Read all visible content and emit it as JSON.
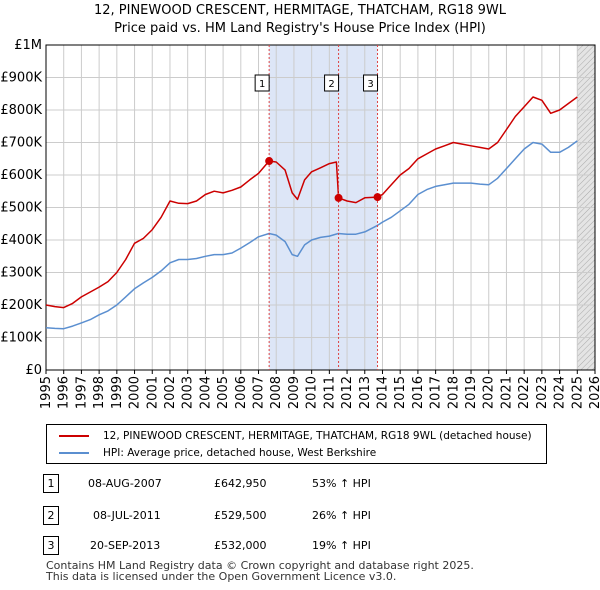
{
  "chart_data": {
    "type": "line",
    "title": "12, PINEWOOD CRESCENT, HERMITAGE, THATCHAM, RG18 9WL",
    "subtitle": "Price paid vs. HM Land Registry's House Price Index (HPI)",
    "xlim": [
      1995,
      2026
    ],
    "ylim": [
      0,
      1000000
    ],
    "x_ticks": [
      "1995",
      "1996",
      "1997",
      "1998",
      "1999",
      "2000",
      "2001",
      "2002",
      "2003",
      "2004",
      "2005",
      "2006",
      "2007",
      "2008",
      "2009",
      "2010",
      "2011",
      "2012",
      "2013",
      "2014",
      "2015",
      "2016",
      "2017",
      "2018",
      "2019",
      "2020",
      "2021",
      "2022",
      "2023",
      "2024",
      "2025",
      "2026"
    ],
    "y_ticks": [
      {
        "value": 0,
        "label": "£0"
      },
      {
        "value": 100000,
        "label": "£100K"
      },
      {
        "value": 200000,
        "label": "£200K"
      },
      {
        "value": 300000,
        "label": "£300K"
      },
      {
        "value": 400000,
        "label": "£400K"
      },
      {
        "value": 500000,
        "label": "£500K"
      },
      {
        "value": 600000,
        "label": "£600K"
      },
      {
        "value": 700000,
        "label": "£700K"
      },
      {
        "value": 800000,
        "label": "£800K"
      },
      {
        "value": 900000,
        "label": "£900K"
      },
      {
        "value": 1000000,
        "label": "£1M"
      }
    ],
    "shaded_ranges": [
      {
        "from": 2007.6,
        "to": 2013.72,
        "color": "#dde6f7"
      },
      {
        "from": 2025.0,
        "to": 2026.0,
        "color": "#e4e4e4",
        "hatched": true
      }
    ],
    "series": [
      {
        "name": "12, PINEWOOD CRESCENT, HERMITAGE, THATCHAM, RG18 9WL (detached house)",
        "color": "#cc0000",
        "points": [
          [
            1995.0,
            200000
          ],
          [
            1995.5,
            195000
          ],
          [
            1996.0,
            192000
          ],
          [
            1996.5,
            205000
          ],
          [
            1997.0,
            225000
          ],
          [
            1997.5,
            240000
          ],
          [
            1998.0,
            255000
          ],
          [
            1998.5,
            272000
          ],
          [
            1999.0,
            300000
          ],
          [
            1999.5,
            340000
          ],
          [
            2000.0,
            390000
          ],
          [
            2000.5,
            405000
          ],
          [
            2001.0,
            432000
          ],
          [
            2001.5,
            470000
          ],
          [
            2002.0,
            520000
          ],
          [
            2002.5,
            513000
          ],
          [
            2003.0,
            512000
          ],
          [
            2003.5,
            520000
          ],
          [
            2004.0,
            540000
          ],
          [
            2004.5,
            550000
          ],
          [
            2005.0,
            545000
          ],
          [
            2005.5,
            553000
          ],
          [
            2006.0,
            563000
          ],
          [
            2006.5,
            585000
          ],
          [
            2007.0,
            605000
          ],
          [
            2007.6,
            642950
          ],
          [
            2008.0,
            640000
          ],
          [
            2008.5,
            615000
          ],
          [
            2008.9,
            545000
          ],
          [
            2009.2,
            525000
          ],
          [
            2009.6,
            585000
          ],
          [
            2010.0,
            610000
          ],
          [
            2010.5,
            622000
          ],
          [
            2011.0,
            635000
          ],
          [
            2011.4,
            640000
          ],
          [
            2011.52,
            529500
          ],
          [
            2012.0,
            520000
          ],
          [
            2012.5,
            515000
          ],
          [
            2013.0,
            530000
          ],
          [
            2013.72,
            532000
          ],
          [
            2014.0,
            540000
          ],
          [
            2014.5,
            570000
          ],
          [
            2015.0,
            600000
          ],
          [
            2015.5,
            620000
          ],
          [
            2016.0,
            650000
          ],
          [
            2016.5,
            665000
          ],
          [
            2017.0,
            680000
          ],
          [
            2017.5,
            690000
          ],
          [
            2018.0,
            700000
          ],
          [
            2018.5,
            695000
          ],
          [
            2019.0,
            690000
          ],
          [
            2019.5,
            685000
          ],
          [
            2020.0,
            680000
          ],
          [
            2020.5,
            700000
          ],
          [
            2021.0,
            740000
          ],
          [
            2021.5,
            780000
          ],
          [
            2022.0,
            810000
          ],
          [
            2022.5,
            840000
          ],
          [
            2023.0,
            830000
          ],
          [
            2023.5,
            790000
          ],
          [
            2024.0,
            800000
          ],
          [
            2024.5,
            820000
          ],
          [
            2025.0,
            840000
          ]
        ]
      },
      {
        "name": "HPI: Average price, detached house, West Berkshire",
        "color": "#5b8fd0",
        "points": [
          [
            1995.0,
            130000
          ],
          [
            1995.5,
            128000
          ],
          [
            1996.0,
            127000
          ],
          [
            1996.5,
            135000
          ],
          [
            1997.0,
            145000
          ],
          [
            1997.5,
            155000
          ],
          [
            1998.0,
            170000
          ],
          [
            1998.5,
            182000
          ],
          [
            1999.0,
            200000
          ],
          [
            1999.5,
            225000
          ],
          [
            2000.0,
            250000
          ],
          [
            2000.5,
            268000
          ],
          [
            2001.0,
            285000
          ],
          [
            2001.5,
            305000
          ],
          [
            2002.0,
            330000
          ],
          [
            2002.5,
            340000
          ],
          [
            2003.0,
            340000
          ],
          [
            2003.5,
            343000
          ],
          [
            2004.0,
            350000
          ],
          [
            2004.5,
            355000
          ],
          [
            2005.0,
            355000
          ],
          [
            2005.5,
            360000
          ],
          [
            2006.0,
            375000
          ],
          [
            2006.5,
            392000
          ],
          [
            2007.0,
            410000
          ],
          [
            2007.6,
            420000
          ],
          [
            2008.0,
            415000
          ],
          [
            2008.5,
            395000
          ],
          [
            2008.9,
            355000
          ],
          [
            2009.2,
            350000
          ],
          [
            2009.6,
            385000
          ],
          [
            2010.0,
            400000
          ],
          [
            2010.5,
            408000
          ],
          [
            2011.0,
            412000
          ],
          [
            2011.5,
            420000
          ],
          [
            2012.0,
            418000
          ],
          [
            2012.5,
            418000
          ],
          [
            2013.0,
            425000
          ],
          [
            2013.72,
            445000
          ],
          [
            2014.0,
            455000
          ],
          [
            2014.5,
            470000
          ],
          [
            2015.0,
            490000
          ],
          [
            2015.5,
            510000
          ],
          [
            2016.0,
            540000
          ],
          [
            2016.5,
            555000
          ],
          [
            2017.0,
            565000
          ],
          [
            2017.5,
            570000
          ],
          [
            2018.0,
            575000
          ],
          [
            2018.5,
            575000
          ],
          [
            2019.0,
            575000
          ],
          [
            2019.5,
            572000
          ],
          [
            2020.0,
            570000
          ],
          [
            2020.5,
            590000
          ],
          [
            2021.0,
            620000
          ],
          [
            2021.5,
            650000
          ],
          [
            2022.0,
            680000
          ],
          [
            2022.5,
            700000
          ],
          [
            2023.0,
            695000
          ],
          [
            2023.5,
            670000
          ],
          [
            2024.0,
            670000
          ],
          [
            2024.5,
            685000
          ],
          [
            2025.0,
            705000
          ]
        ]
      }
    ],
    "sale_markers": [
      {
        "label": "1",
        "x": 2007.6,
        "y": 642950
      },
      {
        "label": "2",
        "x": 2011.52,
        "y": 529500
      },
      {
        "label": "3",
        "x": 2013.72,
        "y": 532000
      }
    ]
  },
  "legend": {
    "items": [
      {
        "label": "12, PINEWOOD CRESCENT, HERMITAGE, THATCHAM, RG18 9WL (detached house)",
        "color": "#cc0000"
      },
      {
        "label": "HPI: Average price, detached house, West Berkshire",
        "color": "#5b8fd0"
      }
    ]
  },
  "sales": [
    {
      "num": "1",
      "date": "08-AUG-2007",
      "price": "£642,950",
      "hpi": "53% ↑ HPI"
    },
    {
      "num": "2",
      "date": "08-JUL-2011",
      "price": "£529,500",
      "hpi": "26% ↑ HPI"
    },
    {
      "num": "3",
      "date": "20-SEP-2013",
      "price": "£532,000",
      "hpi": "19% ↑ HPI"
    }
  ],
  "footer": {
    "line1": "Contains HM Land Registry data © Crown copyright and database right 2025.",
    "line2": "This data is licensed under the Open Government Licence v3.0."
  }
}
